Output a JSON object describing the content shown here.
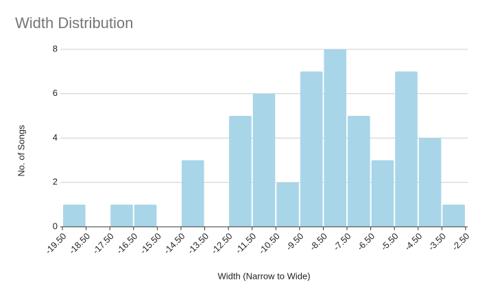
{
  "chart_data": {
    "type": "histogram",
    "title": "Width Distribution",
    "x_label": "Width (Narrow to Wide)",
    "y_label": "No. of Songs",
    "bins": [
      -19.5,
      -18.5,
      -17.5,
      -16.5,
      -15.5,
      -14.5,
      -13.5,
      -12.5,
      -11.5,
      -10.5,
      -9.5,
      -8.5,
      -7.5,
      -6.5,
      -5.5,
      -4.5,
      -3.5,
      -2.5
    ],
    "counts": [
      1,
      0,
      1,
      1,
      0,
      3,
      0,
      5,
      6,
      2,
      7,
      8,
      5,
      3,
      7,
      4,
      1
    ],
    "color": "#a8d5e8",
    "xlim": [
      -19.5,
      -2.5
    ],
    "xticks": [
      {
        "value": -19.5,
        "label": "-19.50"
      },
      {
        "value": -18.5,
        "label": "-18.50"
      },
      {
        "value": -17.5,
        "label": "-17.50"
      },
      {
        "value": -16.5,
        "label": "-16.50"
      },
      {
        "value": -15.5,
        "label": "-15.50"
      },
      {
        "value": -14.5,
        "label": "-14.50"
      },
      {
        "value": -13.5,
        "label": "-13.50"
      },
      {
        "value": -12.5,
        "label": "-12.50"
      },
      {
        "value": -11.5,
        "label": "-11.50"
      },
      {
        "value": -10.5,
        "label": "-10.50"
      },
      {
        "value": -9.5,
        "label": "-9.50"
      },
      {
        "value": -8.5,
        "label": "-8.50"
      },
      {
        "value": -7.5,
        "label": "-7.50"
      },
      {
        "value": -6.5,
        "label": "-6.50"
      },
      {
        "value": -5.5,
        "label": "-5.50"
      },
      {
        "value": -4.5,
        "label": "-4.50"
      },
      {
        "value": -3.5,
        "label": "-3.50"
      },
      {
        "value": -2.5,
        "label": "-2.50"
      }
    ],
    "ylim": [
      0,
      8
    ],
    "yticks": [
      0,
      2,
      4,
      6,
      8
    ],
    "grid": true
  }
}
